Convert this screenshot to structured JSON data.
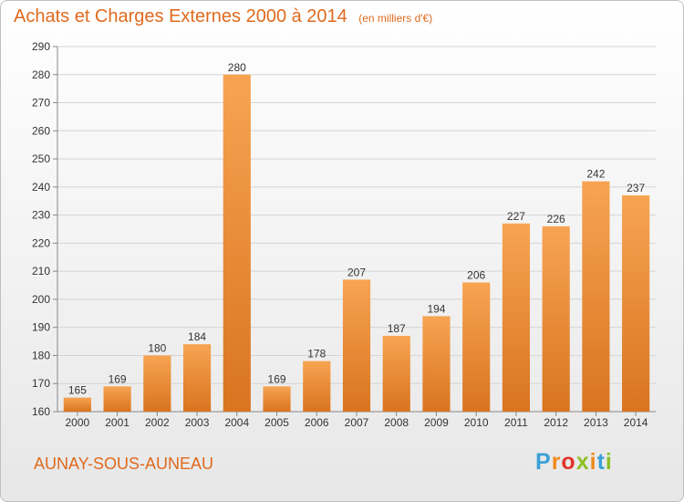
{
  "header": {
    "title": "Achats et Charges Externes 2000 à 2014",
    "unit": "(en milliers d'€)"
  },
  "footer": {
    "city": "AUNAY-SOUS-AUNEAU",
    "logo_text": "Proxiti"
  },
  "colors": {
    "accent": "#e06a1e",
    "bar_light": "#f7a452",
    "bar_dark": "#d9741f"
  },
  "chart_data": {
    "type": "bar",
    "title": "Achats et Charges Externes 2000 à 2014",
    "subtitle": "(en milliers d'€)",
    "xlabel": "",
    "ylabel": "",
    "ylim": [
      160,
      290
    ],
    "yticks": [
      160,
      170,
      180,
      190,
      200,
      210,
      220,
      230,
      240,
      250,
      260,
      270,
      280,
      290
    ],
    "grid": true,
    "legend": "none",
    "categories": [
      "2000",
      "2001",
      "2002",
      "2003",
      "2004",
      "2005",
      "2006",
      "2007",
      "2008",
      "2009",
      "2010",
      "2011",
      "2012",
      "2013",
      "2014"
    ],
    "values": [
      165,
      169,
      180,
      184,
      280,
      169,
      178,
      207,
      187,
      194,
      206,
      227,
      226,
      242,
      237
    ]
  }
}
